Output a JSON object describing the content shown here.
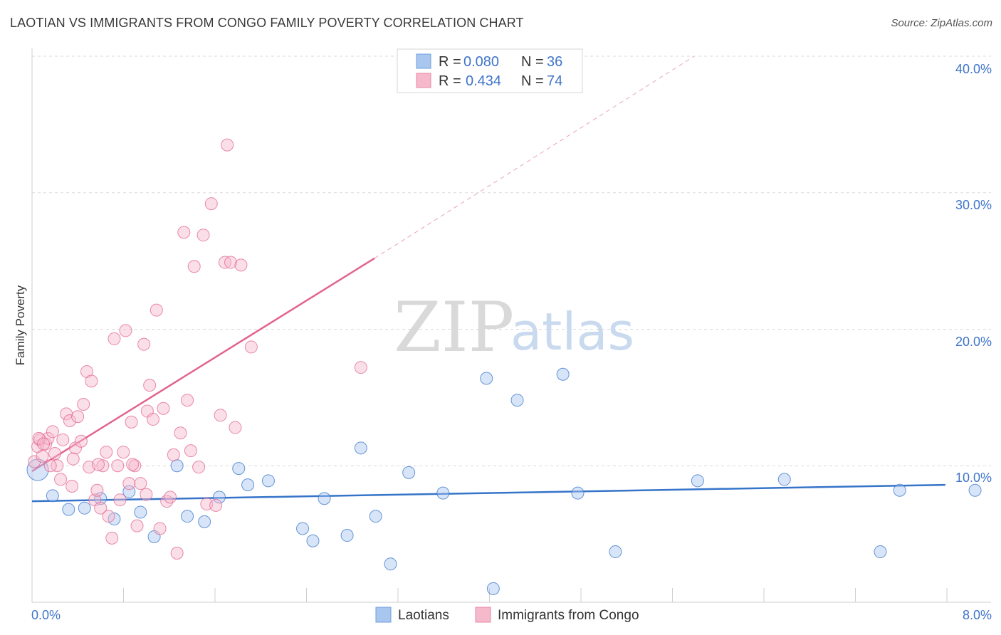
{
  "title": "LAOTIAN VS IMMIGRANTS FROM CONGO FAMILY POVERTY CORRELATION CHART",
  "source": "Source: ZipAtlas.com",
  "watermark": {
    "zip": "ZIP",
    "atlas": "atlas"
  },
  "colors": {
    "blue": "#3574c9",
    "blue_fill": "#a9c6ef",
    "pink": "#e2648f",
    "pink_fill": "#f6b8cb",
    "grid": "#d9d9d9",
    "axis_label": "#3f74c9"
  },
  "legend": {
    "rows": [
      {
        "r_label": "R = ",
        "r_value": "0.080",
        "n_label": "N = ",
        "n_value": "36"
      },
      {
        "r_label": "R = ",
        "r_value": "0.434",
        "n_label": "N = ",
        "n_value": "74"
      }
    ]
  },
  "chart_data": {
    "type": "scatter",
    "title": "LAOTIAN VS IMMIGRANTS FROM CONGO FAMILY POVERTY CORRELATION CHART",
    "xlabel": "",
    "ylabel": "Family Poverty",
    "xlim": [
      0,
      8.4
    ],
    "ylim": [
      0,
      40
    ],
    "x_tick_labels": [
      "0.0%",
      "8.0%"
    ],
    "y_ticks": [
      10,
      20,
      30,
      40
    ],
    "y_tick_labels": [
      "10.0%",
      "20.0%",
      "30.0%",
      "40.0%"
    ],
    "grid": true,
    "series": [
      {
        "name": "Laotians",
        "color": "blue",
        "r": 0.08,
        "n": 36,
        "trend": {
          "x": [
            0.0,
            8.0
          ],
          "y": [
            7.4,
            8.6
          ],
          "dashed_extension": false
        },
        "points": [
          [
            0.05,
            9.7
          ],
          [
            0.18,
            7.8
          ],
          [
            0.32,
            6.8
          ],
          [
            0.46,
            6.9
          ],
          [
            0.6,
            7.6
          ],
          [
            0.72,
            6.1
          ],
          [
            0.85,
            8.1
          ],
          [
            0.95,
            6.6
          ],
          [
            1.07,
            4.8
          ],
          [
            1.27,
            10.0
          ],
          [
            1.36,
            6.3
          ],
          [
            1.51,
            5.9
          ],
          [
            1.64,
            7.7
          ],
          [
            1.81,
            9.8
          ],
          [
            1.89,
            8.6
          ],
          [
            2.07,
            8.9
          ],
          [
            2.37,
            5.4
          ],
          [
            2.46,
            4.5
          ],
          [
            2.56,
            7.6
          ],
          [
            2.76,
            4.9
          ],
          [
            2.88,
            11.3
          ],
          [
            3.01,
            6.3
          ],
          [
            3.14,
            2.8
          ],
          [
            3.3,
            9.5
          ],
          [
            3.6,
            8.0
          ],
          [
            3.98,
            16.4
          ],
          [
            4.04,
            1.0
          ],
          [
            4.25,
            14.8
          ],
          [
            4.65,
            16.7
          ],
          [
            4.78,
            8.0
          ],
          [
            5.11,
            3.7
          ],
          [
            5.83,
            8.9
          ],
          [
            6.59,
            9.0
          ],
          [
            7.43,
            3.7
          ],
          [
            7.6,
            8.2
          ],
          [
            8.26,
            8.2
          ]
        ]
      },
      {
        "name": "Immigrants from Congo",
        "color": "pink",
        "r": 0.434,
        "n": 74,
        "trend": {
          "x": [
            0.0,
            3.0
          ],
          "y": [
            9.6,
            25.2
          ],
          "dashed_extension": true,
          "dash_to": [
            5.8,
            40.0
          ]
        },
        "points": [
          [
            0.02,
            10.3
          ],
          [
            0.05,
            11.4
          ],
          [
            0.07,
            11.9
          ],
          [
            0.09,
            10.7
          ],
          [
            0.12,
            11.6
          ],
          [
            0.14,
            12.0
          ],
          [
            0.18,
            12.5
          ],
          [
            0.2,
            10.9
          ],
          [
            0.22,
            10.0
          ],
          [
            0.25,
            9.0
          ],
          [
            0.27,
            11.9
          ],
          [
            0.3,
            13.8
          ],
          [
            0.33,
            13.3
          ],
          [
            0.35,
            8.5
          ],
          [
            0.38,
            11.3
          ],
          [
            0.4,
            13.6
          ],
          [
            0.43,
            11.8
          ],
          [
            0.45,
            14.5
          ],
          [
            0.48,
            16.9
          ],
          [
            0.5,
            9.9
          ],
          [
            0.52,
            16.2
          ],
          [
            0.55,
            7.5
          ],
          [
            0.57,
            8.2
          ],
          [
            0.6,
            6.9
          ],
          [
            0.62,
            10.0
          ],
          [
            0.65,
            11.0
          ],
          [
            0.67,
            6.3
          ],
          [
            0.7,
            4.7
          ],
          [
            0.72,
            19.3
          ],
          [
            0.75,
            10.0
          ],
          [
            0.77,
            7.5
          ],
          [
            0.8,
            11.0
          ],
          [
            0.82,
            19.9
          ],
          [
            0.85,
            8.7
          ],
          [
            0.87,
            13.2
          ],
          [
            0.9,
            10.0
          ],
          [
            0.92,
            5.6
          ],
          [
            0.95,
            8.7
          ],
          [
            0.98,
            18.9
          ],
          [
            1.01,
            14.0
          ],
          [
            1.03,
            15.9
          ],
          [
            1.06,
            13.4
          ],
          [
            1.09,
            21.4
          ],
          [
            1.12,
            5.4
          ],
          [
            1.15,
            14.2
          ],
          [
            1.18,
            7.4
          ],
          [
            1.21,
            7.7
          ],
          [
            1.24,
            10.8
          ],
          [
            1.27,
            3.6
          ],
          [
            1.3,
            12.4
          ],
          [
            1.33,
            27.1
          ],
          [
            1.36,
            14.8
          ],
          [
            1.39,
            11.1
          ],
          [
            1.42,
            24.6
          ],
          [
            1.46,
            9.9
          ],
          [
            1.5,
            26.9
          ],
          [
            1.53,
            7.2
          ],
          [
            1.57,
            29.2
          ],
          [
            1.61,
            7.1
          ],
          [
            1.65,
            13.7
          ],
          [
            1.69,
            24.9
          ],
          [
            1.71,
            33.5
          ],
          [
            1.74,
            24.9
          ],
          [
            1.78,
            12.8
          ],
          [
            1.83,
            24.7
          ],
          [
            1.92,
            18.7
          ],
          [
            2.88,
            17.2
          ],
          [
            0.06,
            12.0
          ],
          [
            0.1,
            11.6
          ],
          [
            0.16,
            10.0
          ],
          [
            0.36,
            10.5
          ],
          [
            0.58,
            10.1
          ],
          [
            0.88,
            10.1
          ],
          [
            1.0,
            7.9
          ]
        ]
      }
    ]
  },
  "bottom_legend": [
    {
      "label": "Laotians",
      "color": "blue"
    },
    {
      "label": "Immigrants from Congo",
      "color": "pink"
    }
  ]
}
